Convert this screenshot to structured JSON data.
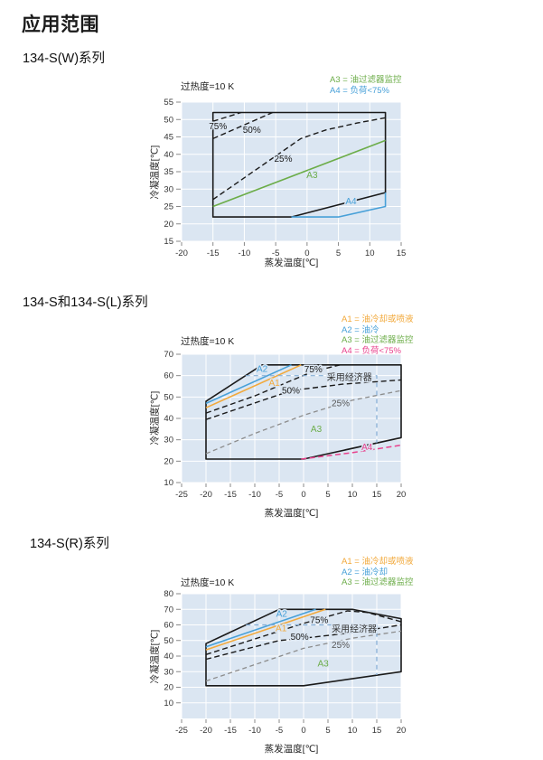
{
  "page": {
    "title": "应用范围"
  },
  "chart_data": [
    {
      "type": "line",
      "heading": "134-S(W)系列",
      "superheat": "过热度=10 K",
      "xlabel": "蒸发温度[℃]",
      "ylabel": "冷凝温度[℃]",
      "xlim": [
        -20,
        15
      ],
      "ylim": [
        15,
        55
      ],
      "x_ticks": [
        -20,
        -15,
        -10,
        -5,
        0,
        5,
        10,
        15
      ],
      "y_ticks": [
        15,
        20,
        25,
        30,
        35,
        40,
        45,
        50,
        55
      ],
      "grid": true,
      "plot_bg": "#dbe6f2",
      "legend_position": "top-right",
      "legend": [
        {
          "label": "A3 = 油过滤器监控",
          "color": "#6cad49"
        },
        {
          "label": "A4 = 负荷<75%",
          "color": "#47a0d8"
        }
      ],
      "series": [
        {
          "name": "operating-envelope",
          "color": "#1a1a1a",
          "width": 1.6,
          "dash": null,
          "closed": true,
          "points": [
            [
              -15,
              22
            ],
            [
              -15,
              52
            ],
            [
              12.5,
              52
            ],
            [
              12.5,
              29
            ],
            [
              -2.5,
              22
            ]
          ]
        },
        {
          "name": "load-75pct-limit",
          "color": "#1a1a1a",
          "width": 1.4,
          "dash": "6,3.5",
          "points": [
            [
              -15,
              49.5
            ],
            [
              -10.5,
              52
            ]
          ]
        },
        {
          "name": "load-50pct-limit",
          "color": "#1a1a1a",
          "width": 1.4,
          "dash": "6,3.5",
          "points": [
            [
              -15,
              44.5
            ],
            [
              -5.5,
              52
            ]
          ]
        },
        {
          "name": "load-25pct-limit",
          "color": "#1a1a1a",
          "width": 1.4,
          "dash": "6,3.5",
          "points": [
            [
              -15,
              27
            ],
            [
              -1,
              44.5
            ],
            [
              3,
              47
            ],
            [
              8,
              49
            ],
            [
              12.5,
              50.5
            ]
          ]
        },
        {
          "name": "A3-oil-filter-monitoring",
          "color": "#6cad49",
          "width": 1.6,
          "dash": null,
          "points": [
            [
              -15,
              25
            ],
            [
              12.5,
              44
            ]
          ]
        },
        {
          "name": "A4-load-below-75pct",
          "color": "#47a0d8",
          "width": 1.6,
          "dash": null,
          "points": [
            [
              -2.5,
              22
            ],
            [
              5,
              22
            ],
            [
              12.5,
              25
            ],
            [
              12.5,
              29
            ]
          ]
        }
      ],
      "annotations": [
        {
          "text": "75%",
          "x": -14.2,
          "y": 47.2,
          "color": "#1a1a1a"
        },
        {
          "text": "50%",
          "x": -8.8,
          "y": 46.2,
          "color": "#1a1a1a"
        },
        {
          "text": "25%",
          "x": -3.8,
          "y": 37.8,
          "color": "#1a1a1a"
        },
        {
          "text": "A3",
          "x": 0.8,
          "y": 33.2,
          "color": "#6cad49"
        },
        {
          "text": "A4",
          "x": 7.0,
          "y": 25.6,
          "color": "#47a0d8"
        }
      ]
    },
    {
      "type": "line",
      "heading": "134-S和134-S(L)系列",
      "superheat": "过热度=10 K",
      "xlabel": "蒸发温度[℃]",
      "ylabel": "冷凝温度[℃]",
      "xlim": [
        -25,
        20
      ],
      "ylim": [
        10,
        70
      ],
      "x_ticks": [
        -25,
        -20,
        -15,
        -10,
        -5,
        0,
        5,
        10,
        15,
        20
      ],
      "y_ticks": [
        10,
        20,
        30,
        40,
        50,
        60,
        70
      ],
      "grid": true,
      "plot_bg": "#dbe6f2",
      "legend_position": "top-right",
      "legend": [
        {
          "label": "A1 = 油冷却或喷液",
          "color": "#f2a93b"
        },
        {
          "label": "A2 = 油冷",
          "color": "#47a0d8"
        },
        {
          "label": "A3 = 油过滤器监控",
          "color": "#6cad49"
        },
        {
          "label": "A4 = 负荷<75%",
          "color": "#e8418c"
        }
      ],
      "series": [
        {
          "name": "operating-envelope",
          "color": "#1a1a1a",
          "width": 1.6,
          "dash": null,
          "closed": true,
          "points": [
            [
              -20,
              21
            ],
            [
              -20,
              48
            ],
            [
              -8.5,
              65
            ],
            [
              20,
              65
            ],
            [
              20,
              31
            ],
            [
              0,
              21
            ]
          ]
        },
        {
          "name": "A2-oil-cooling",
          "color": "#47a0d8",
          "width": 1.6,
          "dash": null,
          "points": [
            [
              -20,
              47
            ],
            [
              -2.5,
              65
            ]
          ]
        },
        {
          "name": "A1-oil-cooling-or-liquid-injection",
          "color": "#f2a93b",
          "width": 1.6,
          "dash": null,
          "points": [
            [
              -20,
              45
            ],
            [
              -0.5,
              65
            ]
          ]
        },
        {
          "name": "load-75pct-limit",
          "color": "#1a1a1a",
          "width": 1.4,
          "dash": "6,3.5",
          "points": [
            [
              -20,
              42.5
            ],
            [
              -10,
              50.5
            ],
            [
              2,
              62
            ],
            [
              7.5,
              65
            ]
          ]
        },
        {
          "name": "load-50pct-limit",
          "color": "#1a1a1a",
          "width": 1.4,
          "dash": "6,3.5",
          "points": [
            [
              -20,
              39.5
            ],
            [
              -2.5,
              53
            ],
            [
              8,
              56
            ],
            [
              20,
              58
            ]
          ]
        },
        {
          "name": "load-25pct-limit",
          "color": "#8c8c8c",
          "width": 1.3,
          "dash": "5,3.5",
          "points": [
            [
              -20,
              23.5
            ],
            [
              -10,
              33
            ],
            [
              0,
              41.5
            ],
            [
              10,
              48.5
            ],
            [
              20,
              53
            ]
          ]
        },
        {
          "name": "A4-load-below-75pct",
          "color": "#e8418c",
          "width": 1.5,
          "dash": "6,3.5",
          "points": [
            [
              -0.5,
              21
            ],
            [
              10,
              24
            ],
            [
              20,
              27.5
            ]
          ]
        },
        {
          "name": "economizer-region-boundary",
          "color": "#85aed6",
          "width": 1.2,
          "dash": "5,4",
          "points": [
            [
              -11.9,
              60
            ],
            [
              15,
              60
            ],
            [
              15,
              28.5
            ]
          ]
        }
      ],
      "annotations": [
        {
          "text": "A2",
          "x": -8.5,
          "y": 61.8,
          "color": "#47a0d8"
        },
        {
          "text": "A1",
          "x": -6.0,
          "y": 55.2,
          "color": "#f2a93b"
        },
        {
          "text": "75%",
          "x": 2.0,
          "y": 61.6,
          "color": "#1a1a1a"
        },
        {
          "text": "50%",
          "x": -2.6,
          "y": 51.6,
          "color": "#1a1a1a"
        },
        {
          "text": "25%",
          "x": 7.6,
          "y": 45.6,
          "color": "#555555"
        },
        {
          "text": "采用经济器",
          "x": 9.4,
          "y": 57.8,
          "color": "#333333"
        },
        {
          "text": "A3",
          "x": 2.6,
          "y": 33.6,
          "color": "#6cad49"
        },
        {
          "text": "A4",
          "x": 13.0,
          "y": 25.2,
          "color": "#e8418c"
        }
      ]
    },
    {
      "type": "line",
      "heading": "134-S(R)系列",
      "superheat": "过热度=10 K",
      "xlabel": "蒸发温度[℃]",
      "ylabel": "冷凝温度[℃]",
      "xlim": [
        -25,
        20
      ],
      "ylim": [
        0,
        80
      ],
      "x_ticks": [
        -25,
        -20,
        -15,
        -10,
        -5,
        0,
        5,
        10,
        15,
        20
      ],
      "y_ticks": [
        10,
        20,
        30,
        40,
        50,
        60,
        70,
        80
      ],
      "grid": true,
      "plot_bg": "#dbe6f2",
      "legend_position": "top-right",
      "legend": [
        {
          "label": "A1 = 油冷却或喷液",
          "color": "#f2a93b"
        },
        {
          "label": "A2 = 油冷却",
          "color": "#47a0d8"
        },
        {
          "label": "A3 = 油过滤器监控",
          "color": "#6cad49"
        }
      ],
      "series": [
        {
          "name": "operating-envelope",
          "color": "#1a1a1a",
          "width": 1.6,
          "dash": null,
          "closed": true,
          "points": [
            [
              -20,
              21
            ],
            [
              -20,
              48
            ],
            [
              -5,
              70
            ],
            [
              10,
              70
            ],
            [
              20,
              64
            ],
            [
              20,
              30
            ],
            [
              0,
              21
            ]
          ]
        },
        {
          "name": "A2-oil-cooling",
          "color": "#47a0d8",
          "width": 1.6,
          "dash": null,
          "points": [
            [
              -20,
              46
            ],
            [
              2.5,
              70
            ]
          ]
        },
        {
          "name": "A1-oil-cooling-or-liquid-injection",
          "color": "#f2a93b",
          "width": 1.6,
          "dash": null,
          "points": [
            [
              -20,
              44
            ],
            [
              4.5,
              70
            ]
          ]
        },
        {
          "name": "load-75pct-limit",
          "color": "#1a1a1a",
          "width": 1.4,
          "dash": "6,3.5",
          "points": [
            [
              -20,
              41
            ],
            [
              0,
              61
            ],
            [
              9,
              69
            ],
            [
              13,
              68
            ],
            [
              20,
              62
            ]
          ]
        },
        {
          "name": "load-50pct-limit",
          "color": "#1a1a1a",
          "width": 1.4,
          "dash": "6,3.5",
          "points": [
            [
              -20,
              38
            ],
            [
              -5,
              50
            ],
            [
              0,
              51.5
            ],
            [
              10,
              55
            ],
            [
              20,
              60
            ]
          ]
        },
        {
          "name": "load-25pct-limit",
          "color": "#8c8c8c",
          "width": 1.3,
          "dash": "5,3.5",
          "points": [
            [
              -20,
              24
            ],
            [
              0,
              45
            ],
            [
              10,
              51.5
            ],
            [
              20,
              56
            ]
          ]
        },
        {
          "name": "economizer-region-boundary",
          "color": "#85aed6",
          "width": 1.2,
          "dash": "5,4",
          "points": [
            [
              -11.8,
              60
            ],
            [
              15,
              60
            ],
            [
              15,
              27.8
            ]
          ]
        }
      ],
      "annotations": [
        {
          "text": "A2",
          "x": -4.5,
          "y": 65.3,
          "color": "#47a0d8"
        },
        {
          "text": "A1",
          "x": -4.6,
          "y": 56.0,
          "color": "#f2a93b"
        },
        {
          "text": "75%",
          "x": 3.2,
          "y": 61.2,
          "color": "#1a1a1a"
        },
        {
          "text": "50%",
          "x": -0.8,
          "y": 50.3,
          "color": "#1a1a1a"
        },
        {
          "text": "25%",
          "x": 7.6,
          "y": 45.2,
          "color": "#555555"
        },
        {
          "text": "采用经济器",
          "x": 10.4,
          "y": 55.3,
          "color": "#333333"
        },
        {
          "text": "A3",
          "x": 4.0,
          "y": 33.3,
          "color": "#6cad49"
        }
      ]
    }
  ]
}
